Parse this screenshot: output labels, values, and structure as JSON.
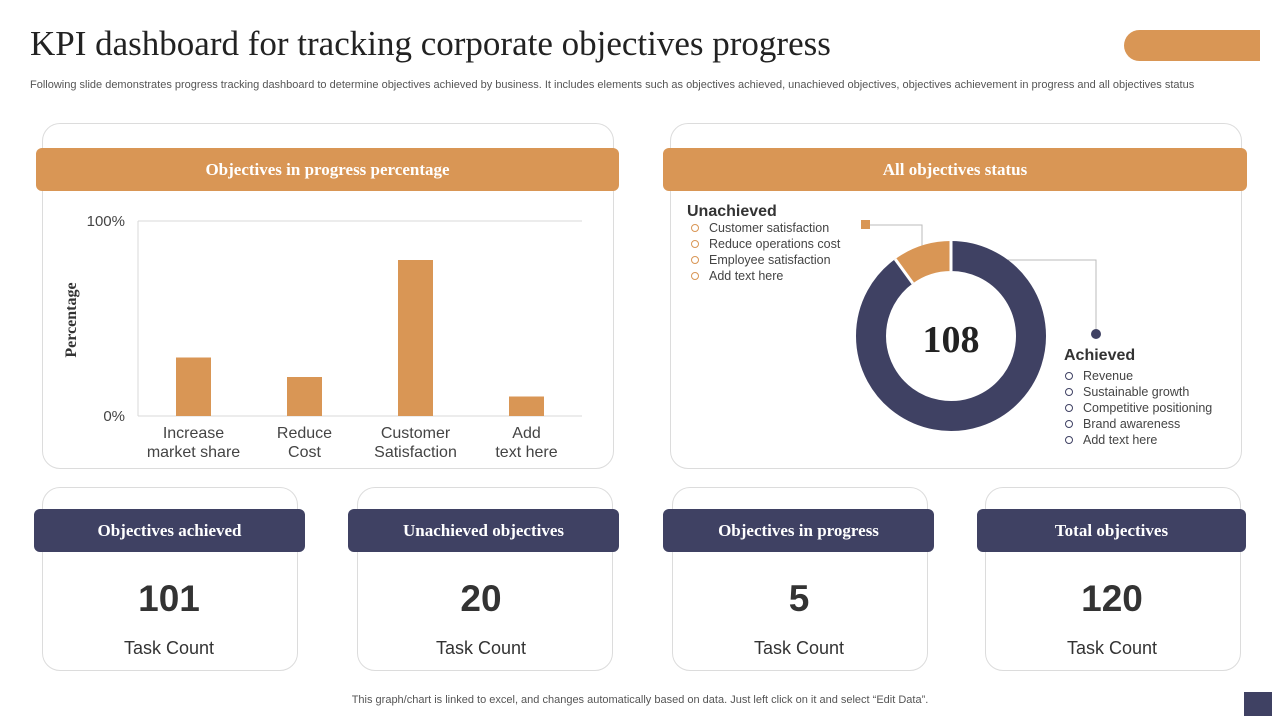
{
  "title": "KPI dashboard for tracking corporate objectives progress",
  "subtitle": "Following slide demonstrates progress tracking dashboard to determine objectives achieved by business. It includes elements such as objectives achieved, unachieved objectives, objectives achievement in progress and all objectives status",
  "colors": {
    "accent": "#d99655",
    "navy": "#3f4163"
  },
  "bar_panel": {
    "header": "Objectives in progress percentage"
  },
  "donut_panel": {
    "header": "All objectives status",
    "center_value": "108",
    "unachieved": {
      "title": "Unachieved",
      "items": [
        "Customer satisfaction",
        "Reduce operations cost",
        "Employee satisfaction",
        "Add text here"
      ]
    },
    "achieved": {
      "title": "Achieved",
      "items": [
        "Revenue",
        "Sustainable growth",
        "Competitive positioning",
        "Brand awareness",
        "Add text here"
      ]
    }
  },
  "kpis": [
    {
      "header": "Objectives achieved",
      "value": "101",
      "label": "Task Count"
    },
    {
      "header": "Unachieved objectives",
      "value": "20",
      "label": "Task Count"
    },
    {
      "header": "Objectives in progress",
      "value": "5",
      "label": "Task Count"
    },
    {
      "header": "Total objectives",
      "value": "120",
      "label": "Task Count"
    }
  ],
  "footer": "This graph/chart is linked to excel, and changes automatically based on data. Just left click on it and select “Edit Data”.",
  "chart_data": [
    {
      "type": "bar",
      "categories": [
        "Increase market share",
        "Reduce Cost",
        "Customer Satisfaction",
        "Add text here"
      ],
      "category_lines": [
        [
          "Increase",
          "market share"
        ],
        [
          "Reduce",
          "Cost"
        ],
        [
          "Customer",
          "Satisfaction"
        ],
        [
          "Add",
          "text here"
        ]
      ],
      "values": [
        30,
        20,
        80,
        10
      ],
      "ylabel": "Percentage",
      "ylim": [
        0,
        100
      ],
      "yticks": [
        "0%",
        "100%"
      ],
      "grid": true,
      "color": "#d99655"
    },
    {
      "type": "pie",
      "donut": true,
      "labels": [
        "Unachieved",
        "Achieved"
      ],
      "values": [
        10,
        90
      ],
      "colors": [
        "#d99655",
        "#3f4163"
      ]
    }
  ]
}
